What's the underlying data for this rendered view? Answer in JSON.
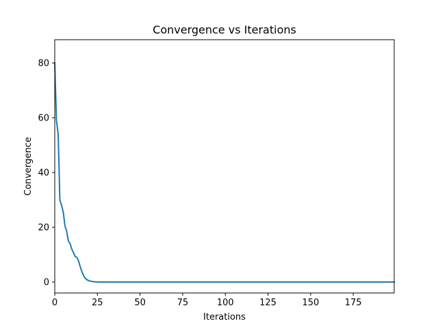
{
  "chart_data": {
    "type": "line",
    "title": "Convergence vs Iterations",
    "xlabel": "Iterations",
    "ylabel": "Convergence",
    "xlim": [
      0,
      199
    ],
    "ylim": [
      -4,
      88.5
    ],
    "grid": false,
    "legend": "none",
    "xticks": [
      0,
      25,
      50,
      75,
      100,
      125,
      150,
      175
    ],
    "xtick_labels": [
      "0",
      "25",
      "50",
      "75",
      "100",
      "125",
      "150",
      "175"
    ],
    "yticks": [
      0,
      20,
      40,
      60,
      80
    ],
    "ytick_labels": [
      "0",
      "20",
      "40",
      "60",
      "80"
    ],
    "series": [
      {
        "color": "#1f77b4",
        "x": [
          0,
          1,
          2,
          3,
          4,
          5,
          6,
          7,
          8,
          9,
          10,
          11,
          12,
          13,
          14,
          15,
          16,
          17,
          18,
          19,
          20,
          21,
          22,
          23,
          24,
          25,
          26,
          27,
          28,
          30,
          35,
          40,
          50,
          75,
          100,
          125,
          150,
          175,
          199
        ],
        "y": [
          80,
          59,
          54,
          30,
          28,
          25.5,
          20.5,
          18.5,
          15,
          14,
          12,
          10.7,
          9.3,
          9,
          7.6,
          5.5,
          3.6,
          2.2,
          1.3,
          0.8,
          0.5,
          0.3,
          0.2,
          0.12,
          0.07,
          0.04,
          0.02,
          0.01,
          0.0,
          0.0,
          0.0,
          0.0,
          0.0,
          0.0,
          0.0,
          0.0,
          0.0,
          0.0,
          0.0
        ]
      }
    ]
  }
}
